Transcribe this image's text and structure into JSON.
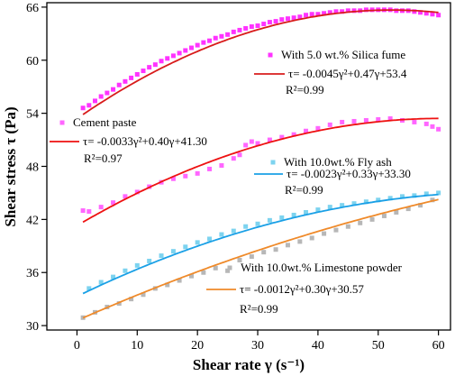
{
  "chart_data": {
    "type": "scatter",
    "xlabel": "Shear rate γ (s⁻¹)",
    "ylabel": "Shear stress τ (Pa)",
    "xlim": [
      -5,
      62
    ],
    "ylim": [
      29.5,
      66.5
    ],
    "xticks": [
      0,
      10,
      20,
      30,
      40,
      50,
      60
    ],
    "yticks": [
      30,
      36,
      42,
      48,
      54,
      60,
      66
    ],
    "grid": false,
    "series": [
      {
        "name": "With 5.0 wt.% Silica fume",
        "color": "#ff33ff",
        "marker": "square",
        "fit_color": "#d81b1b",
        "fit": {
          "a": -0.0045,
          "b": 0.47,
          "c": 53.4
        },
        "equation": "τ= -0.0045γ²+0.47γ+53.4",
        "r2": "R²=0.99",
        "x": [
          1,
          2,
          3,
          4,
          5,
          6,
          7,
          8,
          9,
          10,
          11,
          12,
          13,
          14,
          15,
          16,
          17,
          18,
          19,
          20,
          21,
          22,
          23,
          24,
          25,
          26,
          27,
          28,
          29,
          30,
          31,
          32,
          33,
          34,
          35,
          36,
          37,
          38,
          39,
          40,
          41,
          42,
          43,
          44,
          45,
          46,
          47,
          48,
          49,
          50,
          51,
          52,
          53,
          54,
          55,
          56,
          57,
          58,
          59,
          60
        ],
        "y": [
          54.6,
          54.9,
          55.4,
          55.9,
          56.3,
          56.7,
          57.2,
          57.6,
          58.0,
          58.4,
          58.8,
          59.2,
          59.5,
          59.9,
          60.2,
          60.5,
          60.8,
          61.1,
          61.4,
          61.7,
          62.0,
          62.2,
          62.5,
          62.7,
          62.9,
          63.2,
          63.4,
          63.6,
          63.8,
          63.9,
          64.1,
          64.3,
          64.4,
          64.6,
          64.7,
          64.8,
          64.9,
          65.1,
          65.2,
          65.2,
          65.3,
          65.4,
          65.5,
          65.5,
          65.6,
          65.6,
          65.6,
          65.7,
          65.7,
          65.7,
          65.7,
          65.7,
          65.6,
          65.6,
          65.6,
          65.5,
          65.4,
          65.3,
          65.2,
          65.1
        ]
      },
      {
        "name": "Cement paste",
        "color": "#ff66ff",
        "marker": "square",
        "fit_color": "#ee1111",
        "fit": {
          "a": -0.0033,
          "b": 0.4,
          "c": 41.3
        },
        "equation": "τ= -0.0033γ²+0.40γ+41.30",
        "r2": "R²=0.97",
        "x": [
          1,
          2,
          4,
          6,
          8,
          10,
          12,
          14,
          16,
          18,
          20,
          22,
          24,
          26,
          27,
          28,
          29,
          30,
          32,
          34,
          36,
          38,
          40,
          42,
          44,
          46,
          48,
          50,
          52,
          54,
          56,
          58,
          59,
          60
        ],
        "y": [
          43.0,
          42.9,
          43.4,
          43.9,
          44.6,
          45.1,
          45.7,
          46.2,
          46.6,
          46.9,
          47.2,
          47.7,
          48.1,
          48.9,
          49.3,
          50.4,
          50.8,
          50.6,
          51.0,
          51.3,
          51.6,
          52.0,
          52.3,
          52.7,
          53.0,
          53.1,
          53.2,
          53.3,
          53.4,
          53.2,
          53.0,
          52.8,
          52.5,
          52.2
        ]
      },
      {
        "name": "With 10.0wt.% Fly ash",
        "color": "#7dd3ef",
        "marker": "square",
        "fit_color": "#1aa0e6",
        "fit": {
          "a": -0.0023,
          "b": 0.33,
          "c": 33.3
        },
        "equation": "τ= -0.0023γ²+0.33γ+33.30",
        "r2": "R²=0.99",
        "x": [
          2,
          4,
          6,
          8,
          10,
          12,
          14,
          16,
          18,
          20,
          22,
          24,
          26,
          28,
          30,
          32,
          34,
          36,
          38,
          40,
          42,
          44,
          46,
          48,
          50,
          52,
          54,
          56,
          58,
          60
        ],
        "y": [
          34.2,
          34.9,
          35.5,
          36.2,
          36.8,
          37.3,
          37.9,
          38.4,
          38.9,
          39.4,
          39.8,
          40.3,
          40.7,
          41.2,
          41.5,
          41.9,
          42.2,
          42.5,
          42.8,
          43.1,
          43.4,
          43.6,
          43.8,
          44.0,
          44.2,
          44.4,
          44.6,
          44.7,
          44.9,
          45.0
        ]
      },
      {
        "name": "With 10.0wt.% Limestone powder",
        "color": "#b7b7b7",
        "marker": "square",
        "fit_color": "#ef8a2a",
        "fit": {
          "a": -0.0012,
          "b": 0.3,
          "c": 30.57
        },
        "equation": "τ= -0.0012γ²+0.30γ+30.57",
        "r2": "R²=0.99",
        "x": [
          1,
          3,
          5,
          7,
          9,
          11,
          13,
          15,
          17,
          19,
          21,
          23,
          25,
          27,
          29,
          31,
          33,
          35,
          37,
          39,
          41,
          43,
          45,
          47,
          49,
          51,
          53,
          55,
          57,
          59
        ],
        "y": [
          30.9,
          31.5,
          32.1,
          32.5,
          33.0,
          33.5,
          34.2,
          34.6,
          35.1,
          35.6,
          36.0,
          36.5,
          36.2,
          37.4,
          37.8,
          38.3,
          38.6,
          39.1,
          39.5,
          39.9,
          40.4,
          40.8,
          41.2,
          41.6,
          42.0,
          42.4,
          42.8,
          43.2,
          43.6,
          44.2
        ]
      }
    ]
  }
}
